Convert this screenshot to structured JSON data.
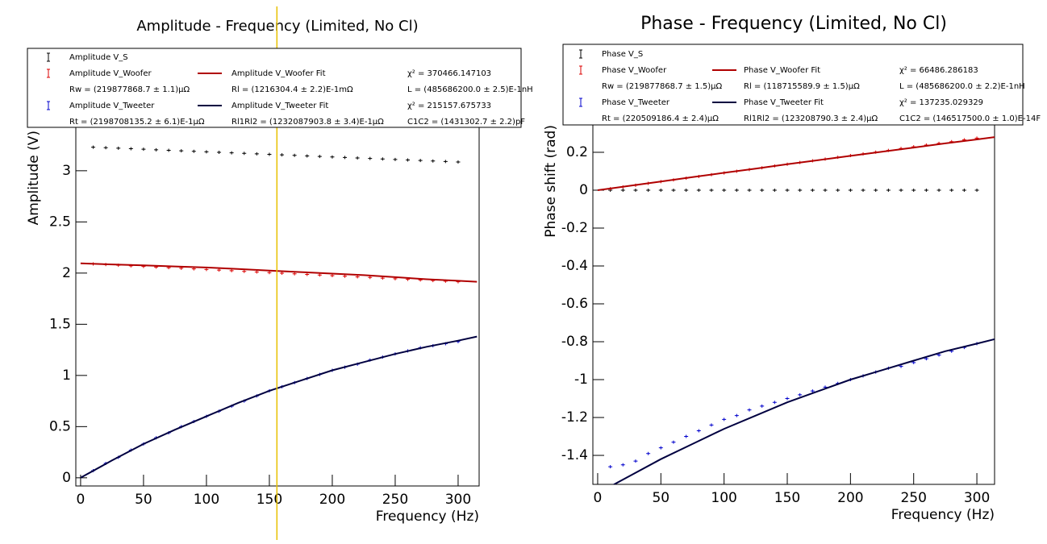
{
  "chart_data": [
    {
      "type": "line",
      "title": "Amplitude - Frequency (Limited, No Cl)",
      "x_label": "Frequency (Hz)",
      "y_label": "Amplitude (V)",
      "xlim": [
        -3.8,
        316.7
      ],
      "ylim": [
        -0.08,
        4.18
      ],
      "xticks": [
        0,
        50,
        100,
        150,
        200,
        250,
        300
      ],
      "yticks": [
        0,
        0.5,
        1,
        1.5,
        2,
        2.5,
        3
      ],
      "vline": {
        "x": 156,
        "color": "#e8c100"
      },
      "series": [
        {
          "name": "Amplitude V_S",
          "style": "points",
          "color": "#000000",
          "x": [
            10,
            20,
            30,
            40,
            50,
            60,
            70,
            80,
            90,
            100,
            110,
            120,
            130,
            140,
            150,
            160,
            170,
            180,
            190,
            200,
            210,
            220,
            230,
            240,
            250,
            260,
            270,
            280,
            290,
            300
          ],
          "values": [
            3.23,
            3.225,
            3.22,
            3.215,
            3.21,
            3.205,
            3.2,
            3.195,
            3.19,
            3.185,
            3.18,
            3.175,
            3.17,
            3.165,
            3.16,
            3.155,
            3.15,
            3.145,
            3.14,
            3.135,
            3.13,
            3.125,
            3.12,
            3.115,
            3.11,
            3.105,
            3.1,
            3.095,
            3.09,
            3.085
          ]
        },
        {
          "name": "Amplitude V_Woofer",
          "style": "points",
          "color": "#dd0000",
          "x": [
            10,
            20,
            30,
            40,
            50,
            60,
            70,
            80,
            90,
            100,
            110,
            120,
            130,
            140,
            150,
            160,
            170,
            180,
            190,
            200,
            210,
            220,
            230,
            240,
            250,
            260,
            270,
            280,
            290,
            300
          ],
          "values": [
            2.089,
            2.083,
            2.077,
            2.071,
            2.065,
            2.059,
            2.053,
            2.047,
            2.041,
            2.035,
            2.029,
            2.023,
            2.017,
            2.011,
            2.005,
            1.999,
            1.993,
            1.987,
            1.981,
            1.975,
            1.969,
            1.963,
            1.957,
            1.951,
            1.945,
            1.939,
            1.933,
            1.927,
            1.921,
            1.915
          ]
        },
        {
          "name": "Amplitude V_Woofer Fit",
          "style": "line",
          "color": "#b00000",
          "x": [
            0,
            25,
            50,
            75,
            100,
            125,
            150,
            175,
            200,
            225,
            250,
            275,
            300,
            315
          ],
          "values": [
            2.095,
            2.085,
            2.075,
            2.065,
            2.055,
            2.04,
            2.025,
            2.01,
            1.995,
            1.98,
            1.96,
            1.94,
            1.925,
            1.915
          ]
        },
        {
          "name": "Amplitude V_Tweeter",
          "style": "points",
          "color": "#0000cc",
          "x": [
            10,
            20,
            30,
            40,
            50,
            60,
            70,
            80,
            90,
            100,
            110,
            120,
            130,
            140,
            150,
            160,
            170,
            180,
            190,
            200,
            210,
            220,
            230,
            240,
            250,
            260,
            270,
            280,
            290,
            300
          ],
          "values": [
            0.07,
            0.14,
            0.2,
            0.27,
            0.33,
            0.39,
            0.44,
            0.5,
            0.55,
            0.6,
            0.65,
            0.7,
            0.75,
            0.8,
            0.85,
            0.89,
            0.93,
            0.97,
            1.01,
            1.05,
            1.08,
            1.11,
            1.15,
            1.18,
            1.21,
            1.24,
            1.27,
            1.29,
            1.31,
            1.33
          ]
        },
        {
          "name": "Amplitude V_Tweeter Fit",
          "style": "line",
          "color": "#000040",
          "x": [
            0,
            25,
            50,
            75,
            100,
            125,
            150,
            175,
            200,
            225,
            250,
            275,
            300,
            315
          ],
          "values": [
            0,
            0.17,
            0.33,
            0.47,
            0.6,
            0.73,
            0.85,
            0.95,
            1.05,
            1.13,
            1.21,
            1.28,
            1.34,
            1.38
          ]
        }
      ],
      "stats": [
        "χ² = 370466.147103",
        "Rw = (219877868.7  ± 1.1)μΩ",
        "Rl = (1216304.4  ± 2.2)E-1mΩ",
        "L = (485686200.0  ± 2.5)E-1nH",
        "χ² = 215157.675733",
        "Rt = (2198708135.2  ± 6.1)E-1μΩ",
        "Rl1Rl2 = (1232087903.8  ± 3.4)E-1μΩ",
        "C1C2 = (1431302.7  ± 2.2)pF"
      ]
    },
    {
      "type": "line",
      "title": "Phase - Frequency (Limited, No Cl)",
      "x_label": "Frequency (Hz)",
      "y_label": "Phase shift (rad)",
      "xlim": [
        -3.8,
        314
      ],
      "ylim": [
        -1.553,
        0.77
      ],
      "xticks": [
        0,
        50,
        100,
        150,
        200,
        250,
        300
      ],
      "yticks": [
        -1.4,
        -1.2,
        -1,
        -0.8,
        -0.6,
        -0.4,
        -0.2,
        0,
        0.2
      ],
      "series": [
        {
          "name": "Phase V_S",
          "style": "points",
          "color": "#000000",
          "x": [
            10,
            20,
            30,
            40,
            50,
            60,
            70,
            80,
            90,
            100,
            110,
            120,
            130,
            140,
            150,
            160,
            170,
            180,
            190,
            200,
            210,
            220,
            230,
            240,
            250,
            260,
            270,
            280,
            290,
            300
          ],
          "values": [
            0,
            0,
            0,
            0,
            0,
            0,
            0,
            0,
            0,
            0,
            0,
            0,
            0,
            0,
            0,
            0,
            0,
            0,
            0,
            0,
            0,
            0,
            0,
            0,
            0,
            0,
            0,
            0,
            0,
            0
          ]
        },
        {
          "name": "Phase V_Woofer",
          "style": "points",
          "color": "#dd0000",
          "x": [
            10,
            20,
            30,
            40,
            50,
            60,
            70,
            80,
            90,
            100,
            110,
            120,
            130,
            140,
            150,
            160,
            170,
            180,
            190,
            200,
            210,
            220,
            230,
            240,
            250,
            260,
            270,
            280,
            290,
            300
          ],
          "values": [
            0.008,
            0.017,
            0.026,
            0.036,
            0.045,
            0.054,
            0.063,
            0.072,
            0.082,
            0.091,
            0.1,
            0.109,
            0.118,
            0.128,
            0.137,
            0.146,
            0.155,
            0.164,
            0.174,
            0.183,
            0.192,
            0.201,
            0.21,
            0.22,
            0.229,
            0.238,
            0.247,
            0.256,
            0.266,
            0.275
          ]
        },
        {
          "name": "Phase V_Woofer Fit",
          "style": "line",
          "color": "#b00000",
          "x": [
            0,
            25,
            50,
            75,
            100,
            125,
            150,
            175,
            200,
            225,
            250,
            275,
            300,
            315
          ],
          "values": [
            0,
            0.023,
            0.046,
            0.069,
            0.092,
            0.114,
            0.137,
            0.159,
            0.181,
            0.203,
            0.225,
            0.247,
            0.268,
            0.281
          ]
        },
        {
          "name": "Phase V_Tweeter",
          "style": "points",
          "color": "#0000cc",
          "x": [
            10,
            20,
            30,
            40,
            50,
            60,
            70,
            80,
            90,
            100,
            110,
            120,
            130,
            140,
            150,
            160,
            170,
            180,
            190,
            200,
            210,
            220,
            230,
            240,
            250,
            260,
            270,
            280,
            290,
            300
          ],
          "values": [
            -1.46,
            -1.45,
            -1.43,
            -1.39,
            -1.36,
            -1.33,
            -1.3,
            -1.27,
            -1.24,
            -1.21,
            -1.19,
            -1.16,
            -1.14,
            -1.12,
            -1.1,
            -1.08,
            -1.06,
            -1.04,
            -1.02,
            -1.0,
            -0.98,
            -0.96,
            -0.94,
            -0.93,
            -0.91,
            -0.89,
            -0.87,
            -0.85,
            -0.83,
            -0.81
          ]
        },
        {
          "name": "Phase V_Tweeter Fit",
          "style": "line",
          "color": "#000040",
          "x": [
            0,
            25,
            50,
            75,
            100,
            125,
            150,
            175,
            200,
            225,
            250,
            275,
            300,
            315
          ],
          "values": [
            -1.6,
            -1.51,
            -1.42,
            -1.34,
            -1.26,
            -1.19,
            -1.12,
            -1.06,
            -1.0,
            -0.95,
            -0.9,
            -0.85,
            -0.81,
            -0.785
          ]
        }
      ],
      "stats": [
        "χ² = 66486.286183",
        "Rw = (219877868.7  ± 1.5)μΩ",
        "Rl = (118715589.9  ± 1.5)μΩ",
        "L = (485686200.0  ± 2.2)E-1nH",
        "χ² = 137235.029329",
        "Rt = (220509186.4  ± 2.4)μΩ",
        "Rl1Rl2 = (123208790.3  ± 2.4)μΩ",
        "C1C2 = (146517500.0  ± 1.0)E-14F"
      ]
    }
  ]
}
